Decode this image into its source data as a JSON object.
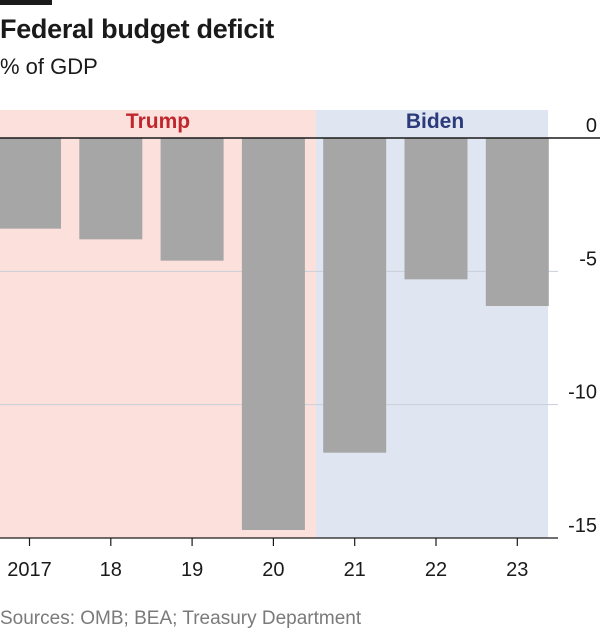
{
  "header": {
    "title": "Federal budget deficit",
    "subtitle": "% of GDP"
  },
  "source": "Sources: OMB; BEA; Treasury Department",
  "chart_data": {
    "type": "bar",
    "title": "Federal budget deficit",
    "subtitle": "% of GDP",
    "xlabel": "",
    "ylabel": "",
    "categories": [
      "2017",
      "18",
      "19",
      "20",
      "21",
      "22",
      "23"
    ],
    "values": [
      -3.4,
      -3.8,
      -4.6,
      -14.7,
      -11.8,
      -5.3,
      -6.3
    ],
    "ylim": [
      -15,
      0
    ],
    "yticks": [
      0,
      -5,
      -10,
      -15
    ],
    "ytick_labels": [
      "0",
      "-5",
      "-10",
      "-15"
    ],
    "y_axis_position": "right",
    "grid": true,
    "bar_color": "#a6a6a6",
    "periods": [
      {
        "label": "Trump",
        "categories": [
          "2017",
          "18",
          "19",
          "20"
        ],
        "background": "#fce0dc",
        "label_color": "#c0272d"
      },
      {
        "label": "Biden",
        "categories": [
          "21",
          "22",
          "23"
        ],
        "background": "#dfe6f1",
        "label_color": "#2b3a7a"
      }
    ]
  }
}
